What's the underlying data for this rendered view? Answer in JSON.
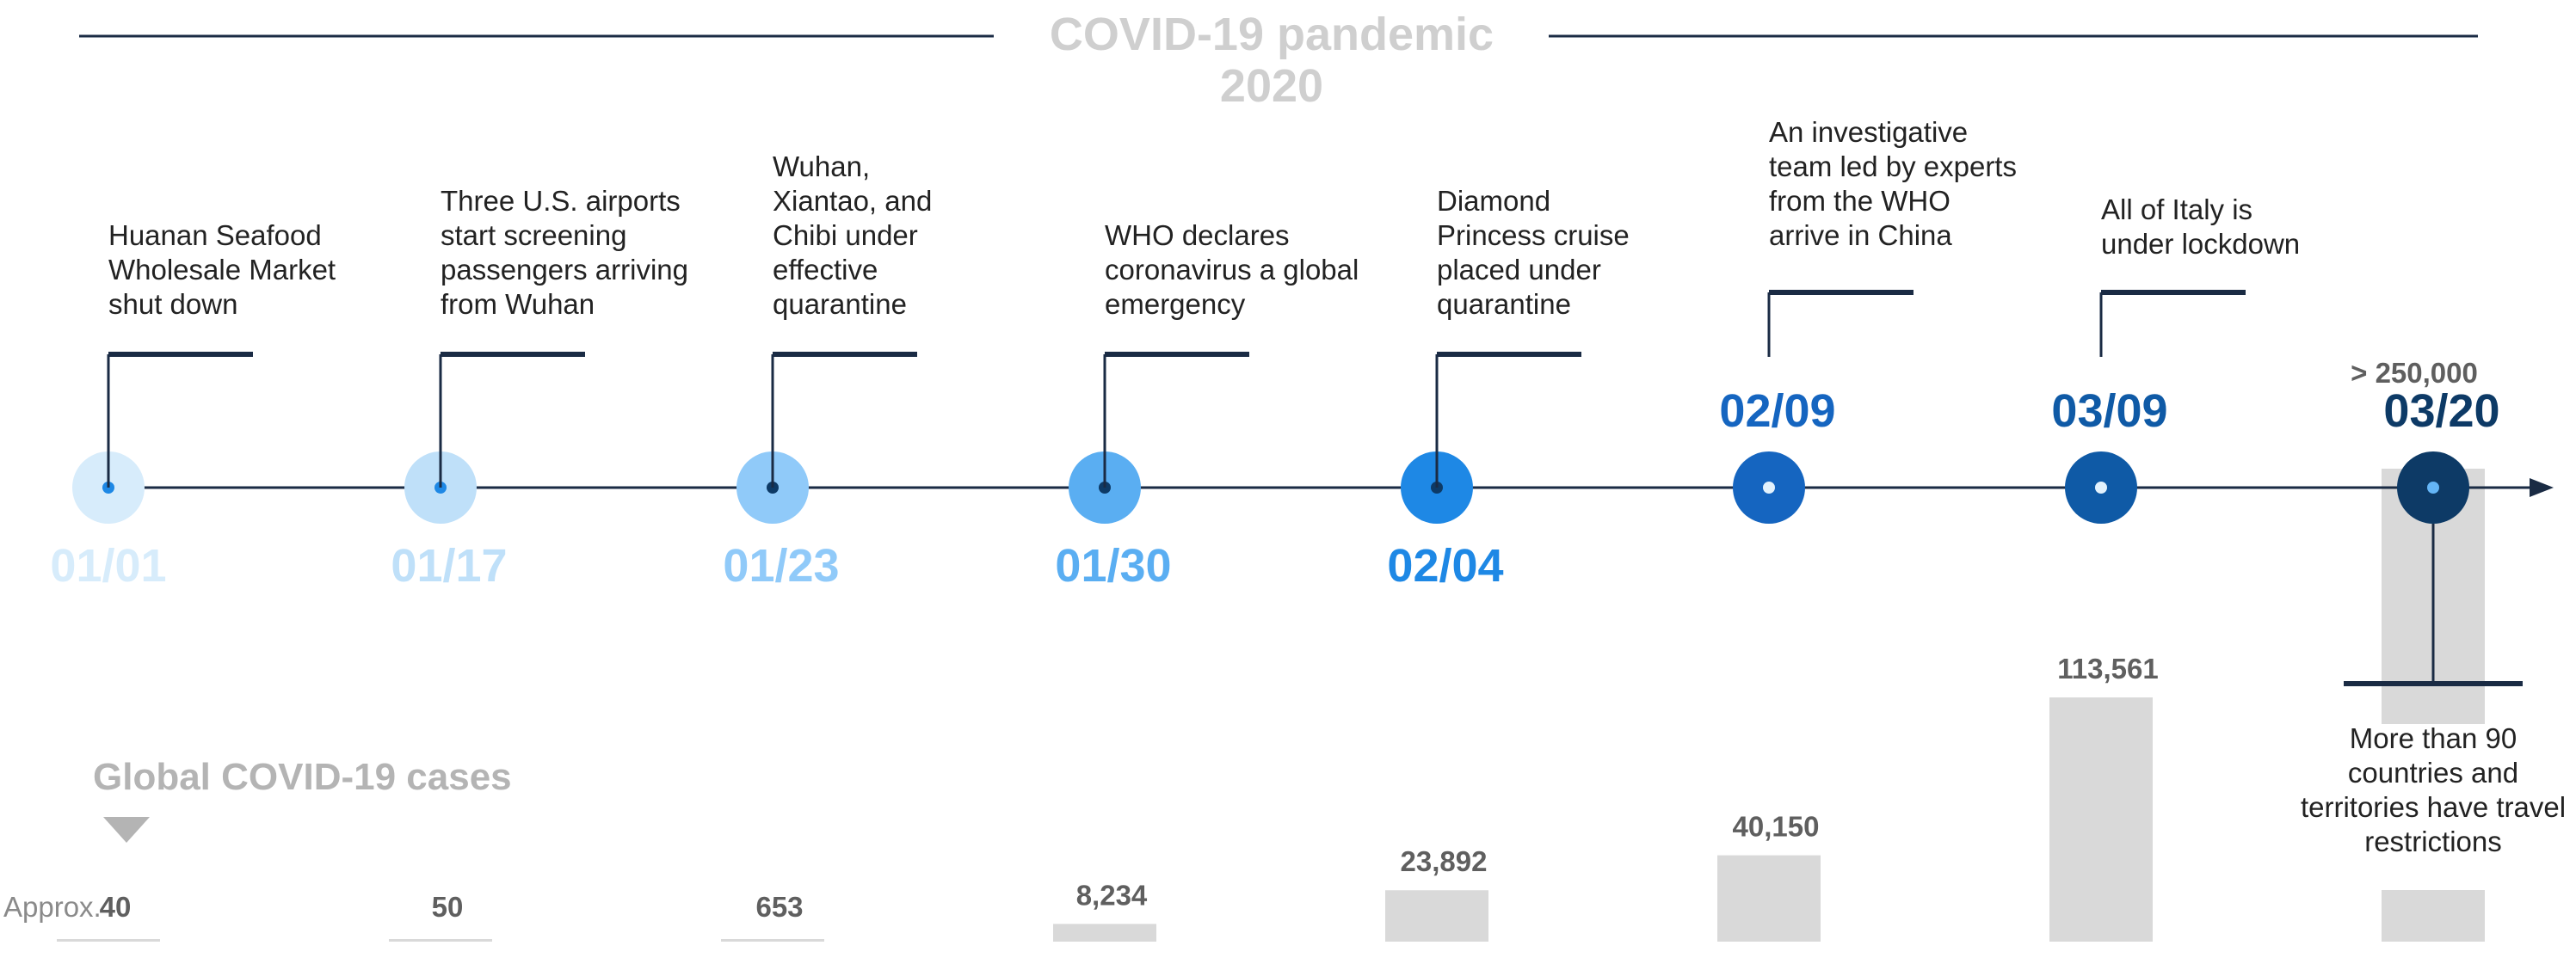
{
  "title": {
    "line1": "COVID-19 pandemic",
    "line2": "2020"
  },
  "section_label": "Global COVID-19 cases",
  "approx_label": "Approx.",
  "colors": {
    "axis": "#1a2b44",
    "bar": "#d9d9d9",
    "title": "#cfcfcf"
  },
  "events": [
    {
      "date": "01/01",
      "lines": [
        "Huanan Seafood",
        "Wholesale Market",
        "shut down"
      ],
      "cases": "40",
      "color": "#d7ecfb",
      "dot": "#1e88e5"
    },
    {
      "date": "01/17",
      "lines": [
        "Three U.S. airports",
        "start screening",
        "passengers arriving",
        "from Wuhan"
      ],
      "cases": "50",
      "color": "#bfe0f9",
      "dot": "#1e88e5"
    },
    {
      "date": "01/23",
      "lines": [
        "Wuhan,",
        "Xiantao, and",
        "Chibi under",
        "effective",
        "quarantine"
      ],
      "cases": "653",
      "color": "#90caf9",
      "dot": "#0d3a66"
    },
    {
      "date": "01/30",
      "lines": [
        "WHO declares",
        "coronavirus a global",
        "emergency"
      ],
      "cases": "8,234",
      "color": "#5aaef2",
      "dot": "#0d3a66"
    },
    {
      "date": "02/04",
      "lines": [
        "Diamond",
        "Princess cruise",
        "placed under",
        "quarantine"
      ],
      "cases": "23,892",
      "color": "#1e88e5",
      "dot": "#0d3a66"
    },
    {
      "date": "02/09",
      "lines": [
        "An investigative",
        "team led by experts",
        "from the WHO",
        "arrive in China"
      ],
      "cases": "40,150",
      "color": "#1565c0",
      "dot": "#e3f2fd"
    },
    {
      "date": "03/09",
      "lines": [
        "All of Italy is",
        "under lockdown"
      ],
      "cases": "113,561",
      "color": "#0f5aa6",
      "dot": "#e3f2fd"
    },
    {
      "date": "03/20",
      "lines": [
        "More than 90",
        "countries and",
        "territories have travel",
        "restrictions"
      ],
      "cases": "> 250,000",
      "color": "#0d3a66",
      "dot": "#64b5f6"
    }
  ],
  "chart_data": {
    "type": "bar",
    "categories": [
      "01/01",
      "01/17",
      "01/23",
      "01/30",
      "02/04",
      "02/09",
      "03/09",
      "03/20"
    ],
    "values": [
      40,
      50,
      653,
      8234,
      23892,
      40150,
      113561,
      250000
    ],
    "value_labels": [
      "40",
      "50",
      "653",
      "8,234",
      "23,892",
      "40,150",
      "113,561",
      "> 250,000"
    ],
    "ylabel": "Global COVID-19 cases"
  }
}
